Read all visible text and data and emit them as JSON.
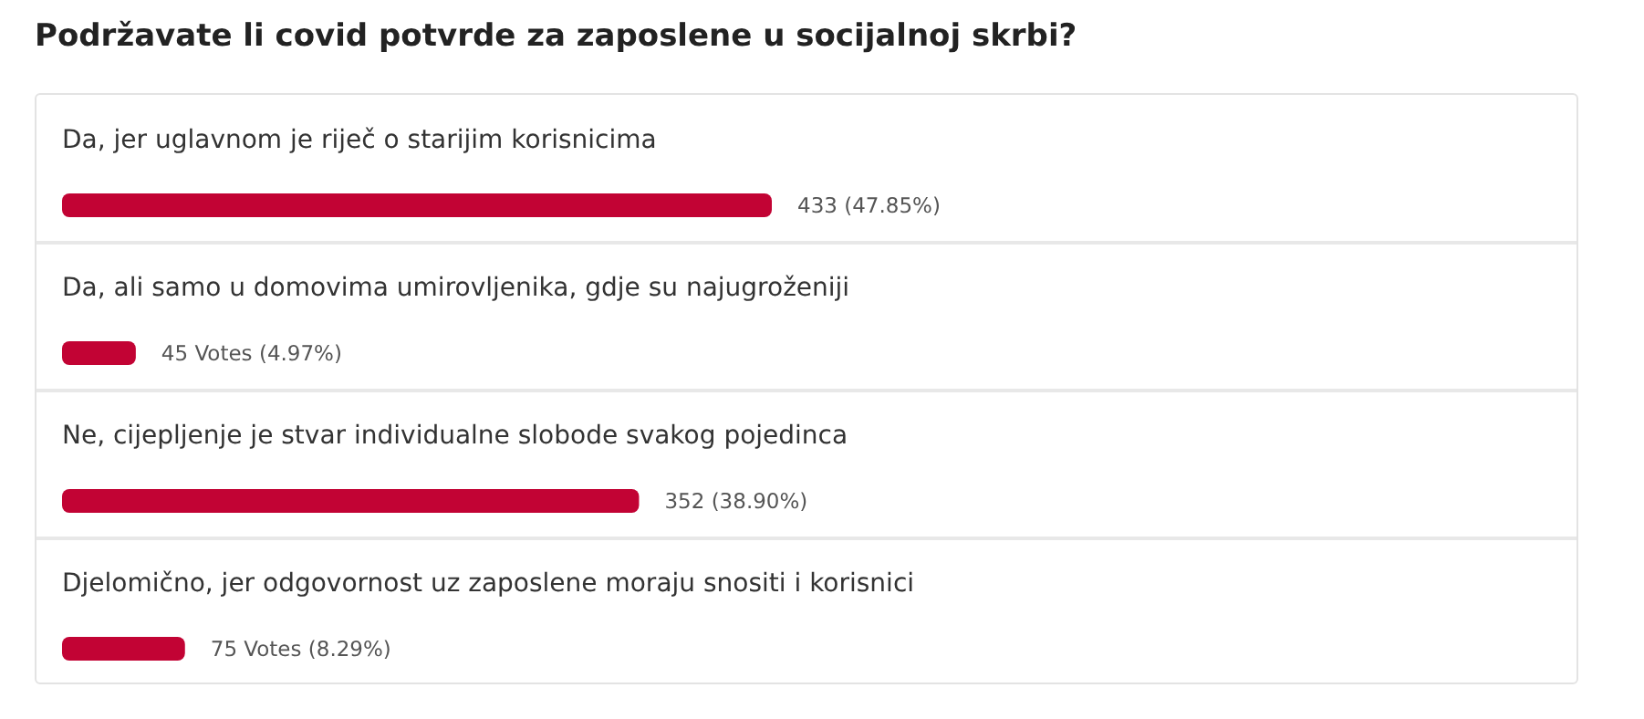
{
  "chart_data": {
    "type": "bar",
    "orientation": "horizontal",
    "title": "Podržavate li covid potvrde za zaposlene u socijalnoj skrbi?",
    "categories": [
      "Da, jer uglavnom je riječ o starijim korisnicima",
      "Da, ali samo u domovima umirovljenika, gdje su najugroženiji",
      "Ne, cijepljenje je stvar individualne slobode svakog pojedinca",
      "Djelomično, jer odgovornost uz zaposlene moraju snositi i korisnici"
    ],
    "values": [
      433,
      45,
      352,
      75
    ],
    "value_labels": [
      "433 (47.85%)",
      "45 Votes (4.97%)",
      "352 (38.90%)",
      "75 Votes (8.29%)"
    ],
    "color": "#c20334"
  }
}
